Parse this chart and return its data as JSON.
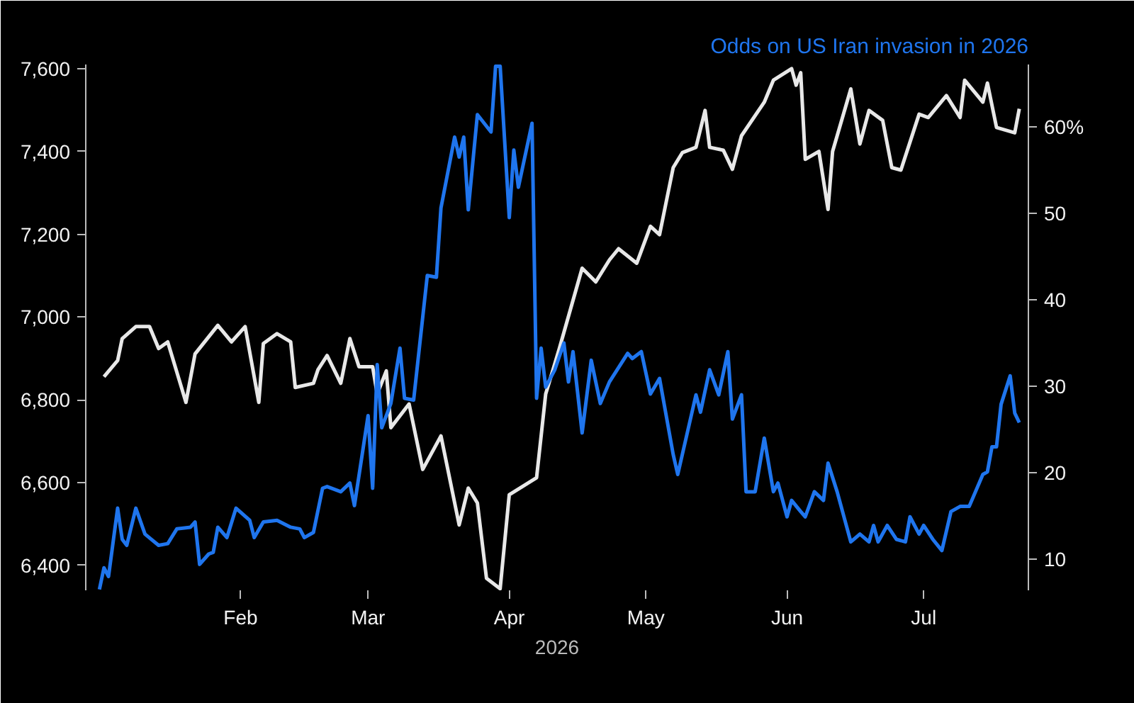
{
  "chart_data": {
    "type": "line",
    "xlabel": "2026",
    "grid": false,
    "marker": "none",
    "line_style": "solid",
    "xlim": [
      "2025-12-29",
      "2026-07-24"
    ],
    "xticks": [
      {
        "value": "2026-02-01",
        "label": "Feb"
      },
      {
        "value": "2026-03-01",
        "label": "Mar"
      },
      {
        "value": "2026-04-01",
        "label": "Apr"
      },
      {
        "value": "2026-05-01",
        "label": "May"
      },
      {
        "value": "2026-06-01",
        "label": "Jun"
      },
      {
        "value": "2026-07-01",
        "label": "Jul"
      }
    ],
    "ylim": [
      6340,
      7610
    ],
    "yticks": [
      {
        "value": 6400,
        "label": "6,400"
      },
      {
        "value": 6600,
        "label": "6,600"
      },
      {
        "value": 6800,
        "label": "6,800"
      },
      {
        "value": 7000,
        "label": "7,000"
      },
      {
        "value": 7200,
        "label": "7,200"
      },
      {
        "value": 7400,
        "label": "7,400"
      },
      {
        "value": 7600,
        "label": "7,600"
      }
    ],
    "y2lim": [
      6.4,
      67.2
    ],
    "y2ticks": [
      10,
      20,
      30,
      40,
      50,
      {
        "value": 60,
        "label": "60%"
      }
    ],
    "series": [
      {
        "color": "#e8e8e8",
        "x": [
          "2026-01-02",
          "2026-01-05",
          "2026-01-06",
          "2026-01-09",
          "2026-01-12",
          "2026-01-14",
          "2026-01-16",
          "2026-01-20",
          "2026-01-22",
          "2026-01-27",
          "2026-01-30",
          "2026-02-02",
          "2026-02-05",
          "2026-02-06",
          "2026-02-09",
          "2026-02-12",
          "2026-02-13",
          "2026-02-17",
          "2026-02-18",
          "2026-02-20",
          "2026-02-23",
          "2026-02-25",
          "2026-02-27",
          "2026-03-02",
          "2026-03-03",
          "2026-03-05",
          "2026-03-06",
          "2026-03-10",
          "2026-03-13",
          "2026-03-17",
          "2026-03-21",
          "2026-03-23",
          "2026-03-25",
          "2026-03-27",
          "2026-03-30",
          "2026-04-01",
          "2026-04-07",
          "2026-04-09",
          "2026-04-12",
          "2026-04-17",
          "2026-04-20",
          "2026-04-23",
          "2026-04-25",
          "2026-04-29",
          "2026-05-02",
          "2026-05-04",
          "2026-05-07",
          "2026-05-09",
          "2026-05-12",
          "2026-05-14",
          "2026-05-15",
          "2026-05-18",
          "2026-05-20",
          "2026-05-22",
          "2026-05-27",
          "2026-05-29",
          "2026-06-02",
          "2026-06-03",
          "2026-06-04",
          "2026-06-05",
          "2026-06-08",
          "2026-06-10",
          "2026-06-11",
          "2026-06-15",
          "2026-06-17",
          "2026-06-19",
          "2026-06-22",
          "2026-06-24",
          "2026-06-26",
          "2026-06-30",
          "2026-07-02",
          "2026-07-06",
          "2026-07-09",
          "2026-07-10",
          "2026-07-14",
          "2026-07-15",
          "2026-07-17",
          "2026-07-21",
          "2026-07-22"
        ],
        "values": [
          6856,
          6895,
          6948,
          6977,
          6977,
          6924,
          6940,
          6794,
          6911,
          6980,
          6940,
          6977,
          6794,
          6936,
          6960,
          6940,
          6830,
          6840,
          6873,
          6907,
          6840,
          6948,
          6880,
          6880,
          6814,
          6870,
          6733,
          6790,
          6632,
          6713,
          6498,
          6587,
          6551,
          6369,
          6344,
          6571,
          6612,
          6814,
          6924,
          7118,
          7085,
          7138,
          7165,
          7130,
          7219,
          7199,
          7361,
          7397,
          7410,
          7499,
          7410,
          7403,
          7357,
          7438,
          7519,
          7572,
          7600,
          7560,
          7590,
          7381,
          7400,
          7260,
          7400,
          7551,
          7418,
          7499,
          7475,
          7361,
          7355,
          7490,
          7482,
          7535,
          7482,
          7572,
          7519,
          7565,
          7458,
          7445,
          7503
        ]
      },
      {
        "name": "Odds on US Iran invasion in 2026",
        "color": "#1f75ee",
        "axis": "y2",
        "x": [
          "2026-01-01",
          "2026-01-02",
          "2026-01-03",
          "2026-01-05",
          "2026-01-06",
          "2026-01-07",
          "2026-01-09",
          "2026-01-11",
          "2026-01-14",
          "2026-01-16",
          "2026-01-18",
          "2026-01-21",
          "2026-01-22",
          "2026-01-23",
          "2026-01-25",
          "2026-01-26",
          "2026-01-27",
          "2026-01-29",
          "2026-01-31",
          "2026-02-03",
          "2026-02-04",
          "2026-02-06",
          "2026-02-09",
          "2026-02-12",
          "2026-02-14",
          "2026-02-15",
          "2026-02-17",
          "2026-02-19",
          "2026-02-20",
          "2026-02-23",
          "2026-02-25",
          "2026-02-26",
          "2026-03-01",
          "2026-03-02",
          "2026-03-03",
          "2026-03-04",
          "2026-03-06",
          "2026-03-08",
          "2026-03-09",
          "2026-03-11",
          "2026-03-14",
          "2026-03-16",
          "2026-03-17",
          "2026-03-20",
          "2026-03-21",
          "2026-03-22",
          "2026-03-23",
          "2026-03-25",
          "2026-03-28",
          "2026-03-29",
          "2026-03-30",
          "2026-04-01",
          "2026-04-02",
          "2026-04-03",
          "2026-04-06",
          "2026-04-07",
          "2026-04-08",
          "2026-04-09",
          "2026-04-11",
          "2026-04-13",
          "2026-04-14",
          "2026-04-15",
          "2026-04-17",
          "2026-04-19",
          "2026-04-21",
          "2026-04-23",
          "2026-04-27",
          "2026-04-28",
          "2026-04-30",
          "2026-05-02",
          "2026-05-04",
          "2026-05-07",
          "2026-05-08",
          "2026-05-12",
          "2026-05-13",
          "2026-05-15",
          "2026-05-17",
          "2026-05-19",
          "2026-05-20",
          "2026-05-22",
          "2026-05-23",
          "2026-05-25",
          "2026-05-27",
          "2026-05-29",
          "2026-05-30",
          "2026-06-01",
          "2026-06-02",
          "2026-06-04",
          "2026-06-05",
          "2026-06-07",
          "2026-06-09",
          "2026-06-10",
          "2026-06-12",
          "2026-06-15",
          "2026-06-17",
          "2026-06-19",
          "2026-06-20",
          "2026-06-21",
          "2026-06-23",
          "2026-06-25",
          "2026-06-27",
          "2026-06-28",
          "2026-06-30",
          "2026-07-01",
          "2026-07-03",
          "2026-07-05",
          "2026-07-07",
          "2026-07-09",
          "2026-07-11",
          "2026-07-14",
          "2026-07-15",
          "2026-07-16",
          "2026-07-17",
          "2026-07-18",
          "2026-07-20",
          "2026-07-21",
          "2026-07-22"
        ],
        "values": [
          6.5,
          9.0,
          8.0,
          15.9,
          12.3,
          11.6,
          15.9,
          12.9,
          11.6,
          11.8,
          13.5,
          13.7,
          14.3,
          9.4,
          10.6,
          10.8,
          13.7,
          12.5,
          15.9,
          14.5,
          12.5,
          14.3,
          14.5,
          13.7,
          13.5,
          12.5,
          13.1,
          18.2,
          18.4,
          17.8,
          18.8,
          16.2,
          26.6,
          18.2,
          32.5,
          25.2,
          28.0,
          34.4,
          28.6,
          28.4,
          42.8,
          42.6,
          50.6,
          58.8,
          56.5,
          58.8,
          50.4,
          61.4,
          59.4,
          67.0,
          67.0,
          49.5,
          57.3,
          53.0,
          60.4,
          28.6,
          34.4,
          29.9,
          31.9,
          35.0,
          30.5,
          34.0,
          24.6,
          33.0,
          28.0,
          30.5,
          33.8,
          33.2,
          34.0,
          29.1,
          30.9,
          22.1,
          19.8,
          29.0,
          27.0,
          31.9,
          29.0,
          34.0,
          26.2,
          29.0,
          17.8,
          17.8,
          24.0,
          17.8,
          18.8,
          14.9,
          16.8,
          15.5,
          14.9,
          17.8,
          16.8,
          21.1,
          17.8,
          12.0,
          12.9,
          12.0,
          13.9,
          12.0,
          13.9,
          12.3,
          12.0,
          14.9,
          12.9,
          13.9,
          12.3,
          11.0,
          15.5,
          16.1,
          16.1,
          19.8,
          20.1,
          23.0,
          23.0,
          27.9,
          31.2,
          26.9,
          25.8
        ]
      }
    ]
  }
}
